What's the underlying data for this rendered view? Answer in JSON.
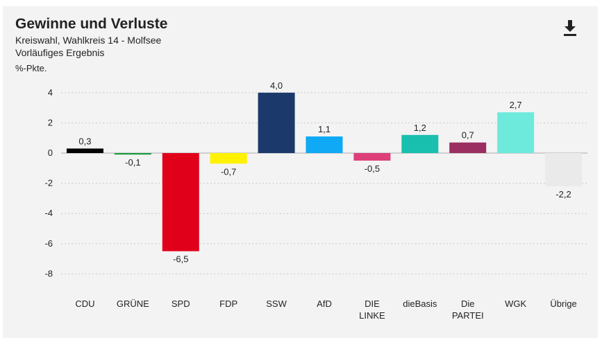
{
  "header": {
    "title": "Gewinne und Verluste",
    "subtitle_line1": "Kreiswahl, Wahlkreis 14 - Molfsee",
    "subtitle_line2": "Vorläufiges Ergebnis",
    "download_icon": "download-icon"
  },
  "chart_data": {
    "type": "bar",
    "title": "Gewinne und Verluste",
    "ylabel": "%-Pkte.",
    "xlabel": "",
    "ylim": [
      -8,
      4
    ],
    "yticks": [
      4,
      2,
      0,
      -2,
      -4,
      -6,
      -8
    ],
    "grid": true,
    "categories": [
      [
        "CDU"
      ],
      [
        "GRÜNE"
      ],
      [
        "SPD"
      ],
      [
        "FDP"
      ],
      [
        "SSW"
      ],
      [
        "AfD"
      ],
      [
        "DIE",
        "LINKE"
      ],
      [
        "dieBasis"
      ],
      [
        "Die",
        "PARTEI"
      ],
      [
        "WGK"
      ],
      [
        "Übrige"
      ]
    ],
    "values": [
      0.3,
      -0.1,
      -6.5,
      -0.7,
      4.0,
      1.1,
      -0.5,
      1.2,
      0.7,
      2.7,
      -2.2
    ],
    "value_labels": [
      "0,3",
      "-0,1",
      "-6,5",
      "-0,7",
      "4,0",
      "1,1",
      "-0,5",
      "1,2",
      "0,7",
      "2,7",
      "-2,2"
    ],
    "colors": [
      "#000000",
      "#1b9e3e",
      "#e1001a",
      "#fff200",
      "#1b3a6b",
      "#0fa9f5",
      "#dd3f78",
      "#19bfaf",
      "#9b2f61",
      "#6eeadc",
      "#eaeaea"
    ]
  }
}
